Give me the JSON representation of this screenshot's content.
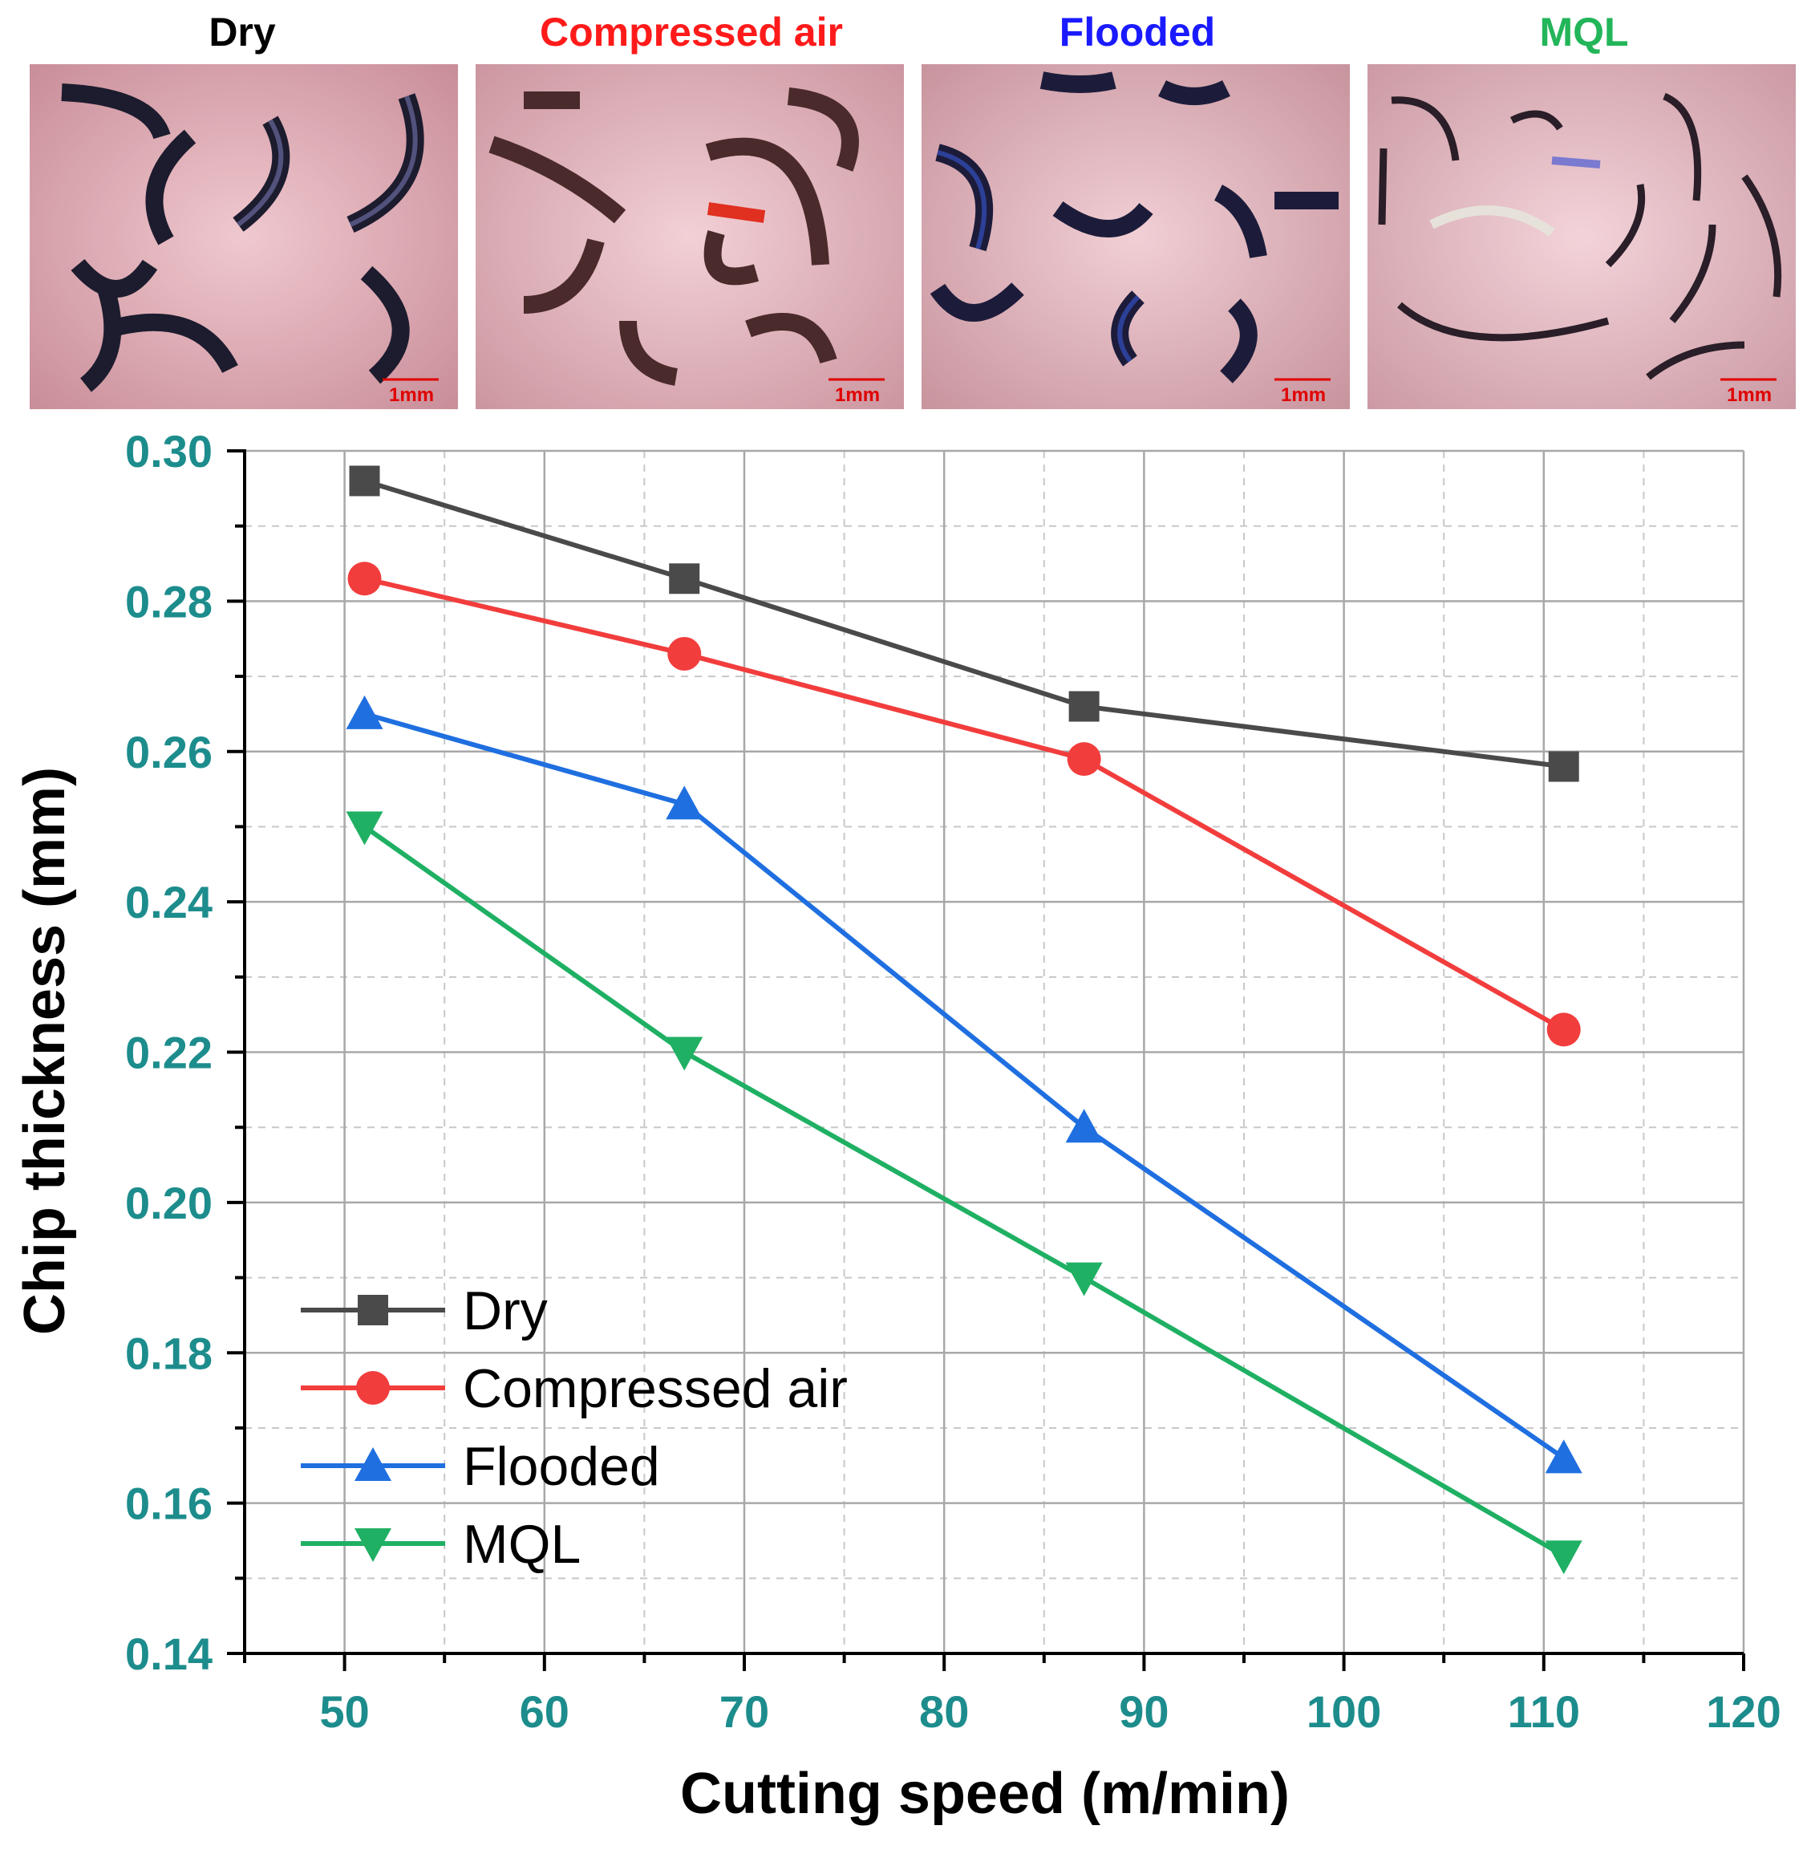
{
  "photos": [
    {
      "label": "Dry",
      "color": "#000000",
      "scale": "1mm"
    },
    {
      "label": "Compressed air",
      "color": "#ff1a1a",
      "scale": "1mm"
    },
    {
      "label": "Flooded",
      "color": "#1a1aff",
      "scale": "1mm"
    },
    {
      "label": "MQL",
      "color": "#22b559",
      "scale": "1mm"
    }
  ],
  "chart_data": {
    "type": "line",
    "xlabel": "Cutting speed (m/min)",
    "ylabel": "Chip thickness (mm)",
    "xlim": [
      45,
      120
    ],
    "ylim": [
      0.14,
      0.3
    ],
    "xticks": [
      "50",
      "60",
      "70",
      "80",
      "90",
      "100",
      "110",
      "120"
    ],
    "yticks": [
      "0.14",
      "0.16",
      "0.18",
      "0.20",
      "0.22",
      "0.24",
      "0.26",
      "0.28",
      "0.30"
    ],
    "grid": true,
    "legend_position": "bottom-left",
    "x": [
      51,
      67,
      87,
      111
    ],
    "series": [
      {
        "name": "Dry",
        "marker": "square",
        "color": "#4a4a4a",
        "values": [
          0.296,
          0.283,
          0.266,
          0.258
        ]
      },
      {
        "name": "Compressed air",
        "marker": "circle",
        "color": "#f23d3d",
        "values": [
          0.283,
          0.273,
          0.259,
          0.223
        ]
      },
      {
        "name": "Flooded",
        "marker": "triangle-up",
        "color": "#1f6fe0",
        "values": [
          0.265,
          0.253,
          0.21,
          0.166
        ]
      },
      {
        "name": "MQL",
        "marker": "triangle-down",
        "color": "#1fb063",
        "values": [
          0.25,
          0.22,
          0.19,
          0.153
        ]
      }
    ]
  }
}
